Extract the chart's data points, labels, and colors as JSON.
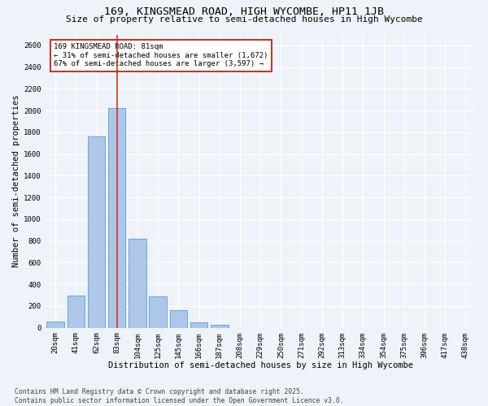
{
  "title": "169, KINGSMEAD ROAD, HIGH WYCOMBE, HP11 1JB",
  "subtitle": "Size of property relative to semi-detached houses in High Wycombe",
  "xlabel": "Distribution of semi-detached houses by size in High Wycombe",
  "ylabel": "Number of semi-detached properties",
  "categories": [
    "20sqm",
    "41sqm",
    "62sqm",
    "83sqm",
    "104sqm",
    "125sqm",
    "145sqm",
    "166sqm",
    "187sqm",
    "208sqm",
    "229sqm",
    "250sqm",
    "271sqm",
    "292sqm",
    "313sqm",
    "334sqm",
    "354sqm",
    "375sqm",
    "396sqm",
    "417sqm",
    "438sqm"
  ],
  "bar_values": [
    60,
    300,
    1760,
    2020,
    820,
    290,
    160,
    50,
    25,
    0,
    0,
    0,
    0,
    0,
    0,
    0,
    0,
    0,
    0,
    0,
    0
  ],
  "bar_color": "#aec6e8",
  "bar_edge_color": "#5b9bd5",
  "vline_x": 3.0,
  "vline_color": "#c0392b",
  "annotation_text": "169 KINGSMEAD ROAD: 81sqm\n← 31% of semi-detached houses are smaller (1,672)\n67% of semi-detached houses are larger (3,597) →",
  "annotation_box_color": "#c0392b",
  "ylim": [
    0,
    2700
  ],
  "yticks": [
    0,
    200,
    400,
    600,
    800,
    1000,
    1200,
    1400,
    1600,
    1800,
    2000,
    2200,
    2400,
    2600
  ],
  "background_color": "#eef2f9",
  "grid_color": "#ffffff",
  "footnote": "Contains HM Land Registry data © Crown copyright and database right 2025.\nContains public sector information licensed under the Open Government Licence v3.0.",
  "title_fontsize": 9.5,
  "subtitle_fontsize": 8,
  "xlabel_fontsize": 7.5,
  "ylabel_fontsize": 7.5,
  "tick_fontsize": 6.5,
  "annotation_fontsize": 6.5,
  "footnote_fontsize": 5.8
}
